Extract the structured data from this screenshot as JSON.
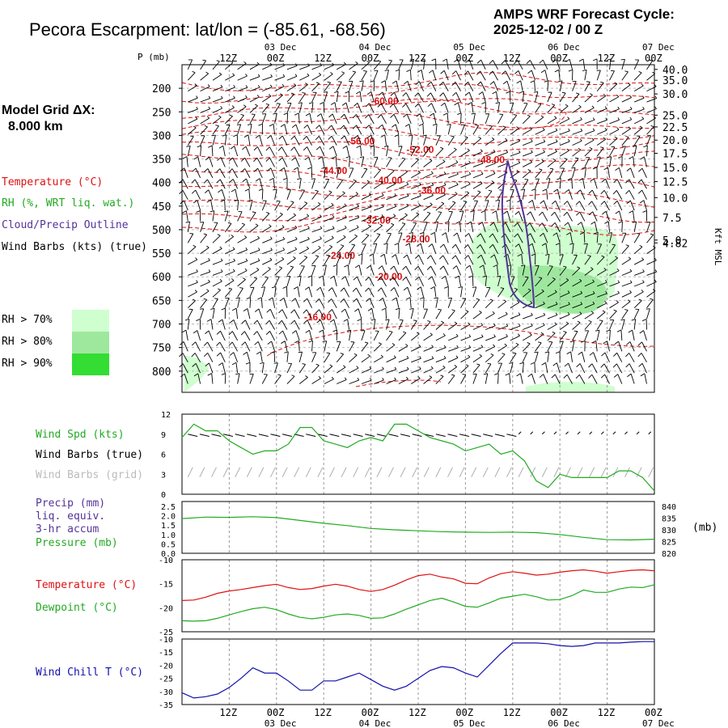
{
  "header": {
    "title": "Pecora Escarpment:  lat/lon = (-85.61, -68.56)",
    "cycle_label": "AMPS WRF Forecast Cycle:",
    "cycle_value": "2025-12-02 / 00  Z",
    "grid_label": "Model Grid ΔX:",
    "grid_value": "8.000 km"
  },
  "colors": {
    "temperature": "#dd1111",
    "rh": "#22aa22",
    "cloud": "#553399",
    "wind": "#000000",
    "grid_barbs": "#b0b0b0",
    "wind_chill": "#1111aa",
    "rh70": "#cfffcf",
    "rh80": "#9ee89e",
    "rh90": "#33dd33"
  },
  "legend": {
    "temperature": "Temperature (°C)",
    "rh": "RH (%, WRT liq. wat.)",
    "cloud": "Cloud/Precip Outline",
    "wind": "Wind Barbs (kts) (true)",
    "rh70": "RH > 70%",
    "rh80": "RH > 80%",
    "rh90": "RH > 90%"
  },
  "time_axis": {
    "top_dates": [
      "03 Dec",
      "04 Dec",
      "05 Dec",
      "06 Dec",
      "07 Dec"
    ],
    "hour_ticks": [
      "12Z",
      "00Z",
      "12Z",
      "00Z",
      "12Z",
      "00Z",
      "12Z",
      "00Z",
      "12Z",
      "00Z"
    ],
    "bottom_dates": [
      "03 Dec",
      "04 Dec",
      "05 Dec",
      "06 Dec",
      "07 Dec"
    ]
  },
  "chart_data": [
    {
      "type": "contour",
      "name": "cross-section",
      "ylabel_left": "P (mb)",
      "ylabel_right": "Kft MSL",
      "pressure_ticks": [
        200,
        250,
        300,
        350,
        400,
        450,
        500,
        550,
        600,
        650,
        700,
        750,
        800
      ],
      "height_ticks": [
        "40.0",
        "35.0",
        "30.0",
        "25.0",
        "22.5",
        "20.0",
        "17.5",
        "15.0",
        "12.5",
        "10.0",
        "7.5",
        "5.0",
        "4.82"
      ],
      "height_tick_pressures": [
        160,
        183,
        212,
        257,
        282,
        310,
        338,
        368,
        398,
        432,
        474,
        522,
        528
      ],
      "ylim": [
        845,
        150
      ],
      "time_range_hours": [
        0,
        120
      ],
      "temperature_labels": [
        {
          "text": "-60.00",
          "t": 48,
          "p": 227
        },
        {
          "text": "-56.00",
          "t": 42,
          "p": 312
        },
        {
          "text": "-52.00",
          "t": 57,
          "p": 330
        },
        {
          "text": "-48.00",
          "t": 75,
          "p": 352
        },
        {
          "text": "-44.00",
          "t": 35,
          "p": 375
        },
        {
          "text": "-40.00",
          "t": 49,
          "p": 395
        },
        {
          "text": "-36.00",
          "t": 60,
          "p": 417
        },
        {
          "text": "-32.00",
          "t": 46,
          "p": 480
        },
        {
          "text": "-28.00",
          "t": 56,
          "p": 520
        },
        {
          "text": "-24.00",
          "t": 37,
          "p": 555
        },
        {
          "text": "-20.00",
          "t": 49,
          "p": 600
        },
        {
          "text": "-16.00",
          "t": 31,
          "p": 685
        }
      ]
    },
    {
      "type": "line",
      "name": "wind",
      "labels": [
        "Wind Spd (kts)",
        "Wind Barbs (true)",
        "Wind Barbs (grid)"
      ],
      "y_ticks": [
        0,
        3,
        6,
        9,
        12
      ],
      "ylim": [
        0,
        12
      ],
      "x_hours": [
        0,
        3,
        6,
        9,
        12,
        15,
        18,
        21,
        24,
        27,
        30,
        33,
        36,
        39,
        42,
        45,
        48,
        51,
        54,
        57,
        60,
        63,
        66,
        69,
        72,
        75,
        78,
        81,
        84,
        87,
        90,
        93,
        96,
        99,
        102,
        105,
        108,
        111,
        114,
        117,
        120
      ],
      "speed_kts": [
        8.5,
        10.5,
        9.5,
        9.5,
        8.0,
        7.0,
        6.0,
        6.5,
        6.5,
        7.5,
        10.0,
        10.0,
        8.0,
        7.5,
        7.0,
        8.0,
        8.5,
        8.0,
        10.5,
        10.5,
        9.5,
        8.5,
        8.0,
        7.5,
        6.5,
        7.0,
        7.5,
        6.0,
        6.5,
        5.0,
        2.0,
        1.0,
        3.0,
        2.5,
        2.5,
        2.5,
        2.5,
        3.5,
        3.5,
        2.5,
        0.5
      ]
    },
    {
      "type": "line",
      "name": "pressure-precip",
      "labels": [
        "Precip (mm)",
        "liq. equiv.",
        "3-hr accum",
        "Pressure (mb)"
      ],
      "y_ticks_left": [
        "0.0",
        "0.5",
        "1.0",
        "1.5",
        "2.0",
        "2.5"
      ],
      "y_ticks_right": [
        "820",
        "825",
        "830",
        "835",
        "840"
      ],
      "ylabel_right": "(mb)",
      "ylim_left": [
        0,
        2.5
      ],
      "ylim_right": [
        820,
        840
      ],
      "x_hours": [
        0,
        6,
        12,
        18,
        24,
        30,
        36,
        42,
        48,
        54,
        60,
        66,
        72,
        78,
        84,
        90,
        96,
        102,
        108,
        114,
        120
      ],
      "pressure_mb": [
        834.8,
        835.4,
        835.3,
        835.6,
        835.2,
        834.0,
        832.8,
        831.8,
        830.6,
        830.0,
        829.6,
        829.2,
        829.0,
        828.9,
        829.0,
        828.8,
        828.0,
        826.8,
        825.8,
        825.7,
        826.0
      ],
      "precip_mm": []
    },
    {
      "type": "line",
      "name": "temperature-dewpoint",
      "labels": [
        "Temperature (°C)",
        "Dewpoint (°C)"
      ],
      "y_ticks": [
        -10,
        -15,
        -20,
        -25
      ],
      "ylim": [
        -25,
        -10
      ],
      "x_hours": [
        0,
        3,
        6,
        9,
        12,
        15,
        18,
        21,
        24,
        27,
        30,
        33,
        36,
        39,
        42,
        45,
        48,
        51,
        54,
        57,
        60,
        63,
        66,
        69,
        72,
        75,
        78,
        81,
        84,
        87,
        90,
        93,
        96,
        99,
        102,
        105,
        108,
        111,
        114,
        117,
        120
      ],
      "temperature_c": [
        -18.5,
        -18.4,
        -17.8,
        -17.0,
        -16.5,
        -16.2,
        -15.8,
        -15.4,
        -15.1,
        -15.8,
        -16.2,
        -16.0,
        -15.5,
        -15.1,
        -15.5,
        -16.2,
        -16.6,
        -16.2,
        -15.3,
        -14.2,
        -13.3,
        -13.0,
        -13.6,
        -14.0,
        -14.9,
        -15.0,
        -13.8,
        -12.9,
        -12.5,
        -12.8,
        -13.2,
        -13.0,
        -12.6,
        -12.3,
        -12.1,
        -12.4,
        -12.8,
        -12.5,
        -12.2,
        -12.1,
        -12.3
      ],
      "dewpoint_c": [
        -22.7,
        -22.8,
        -22.7,
        -22.2,
        -21.5,
        -20.8,
        -20.2,
        -19.9,
        -20.4,
        -21.3,
        -22.0,
        -22.3,
        -22.0,
        -21.5,
        -21.3,
        -21.6,
        -22.2,
        -22.1,
        -21.3,
        -20.3,
        -19.4,
        -18.5,
        -18.0,
        -18.8,
        -19.7,
        -19.9,
        -19.0,
        -18.0,
        -17.6,
        -17.2,
        -17.7,
        -18.4,
        -18.3,
        -17.5,
        -16.3,
        -16.8,
        -16.8,
        -16.1,
        -15.7,
        -15.8,
        -15.2
      ]
    },
    {
      "type": "line",
      "name": "wind-chill",
      "labels": [
        "Wind Chill T (°C)"
      ],
      "y_ticks": [
        -10,
        -15,
        -20,
        -25,
        -30,
        -35
      ],
      "ylim": [
        -35,
        -10
      ],
      "x_hours": [
        0,
        3,
        6,
        9,
        12,
        15,
        18,
        21,
        24,
        27,
        30,
        33,
        36,
        39,
        42,
        45,
        48,
        51,
        54,
        57,
        60,
        63,
        66,
        69,
        72,
        75,
        78,
        81,
        84,
        87,
        90,
        93,
        96,
        99,
        102,
        105,
        108,
        111,
        114,
        117,
        120
      ],
      "wind_chill_c": [
        -30.5,
        -32.5,
        -32.0,
        -31.0,
        -28.5,
        -25.0,
        -21.0,
        -23.0,
        -23.0,
        -26.0,
        -29.5,
        -29.5,
        -26.0,
        -26.0,
        -24.5,
        -23.0,
        -25.5,
        -28.0,
        -29.5,
        -28.0,
        -25.0,
        -22.0,
        -20.5,
        -21.0,
        -23.0,
        -24.5,
        -20.0,
        -15.5,
        -11.5,
        -11.5,
        -11.5,
        -11.8,
        -12.5,
        -12.8,
        -12.5,
        -11.5,
        -11.5,
        -11.5,
        -11.2,
        -11.0,
        -11.0
      ]
    }
  ]
}
